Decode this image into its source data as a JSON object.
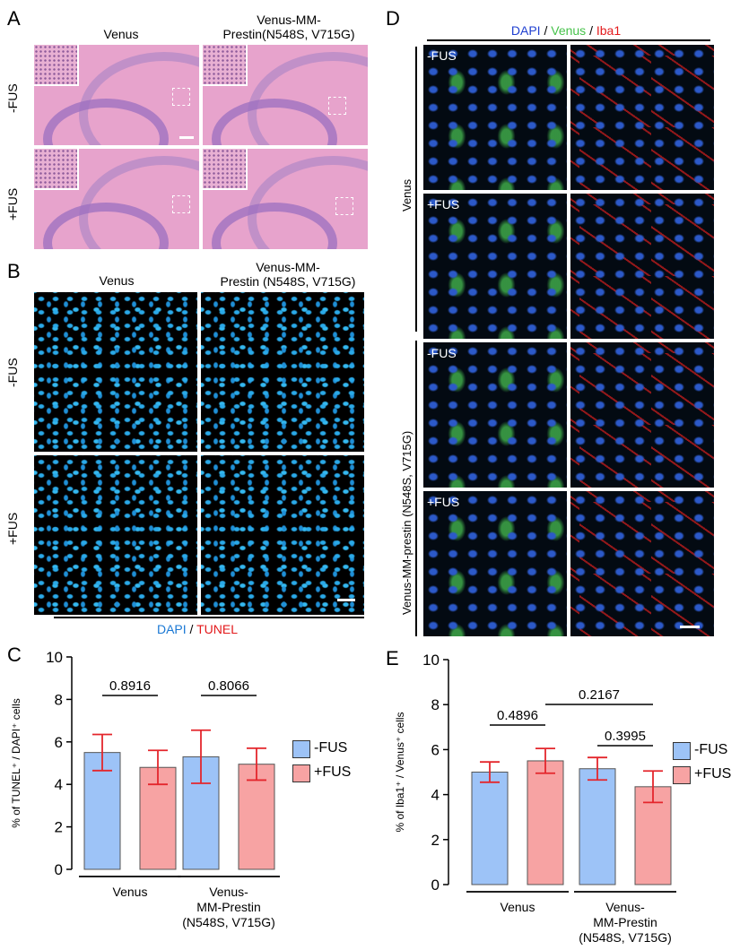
{
  "panels": {
    "A": {
      "label": "A",
      "col_titles": [
        "Venus",
        "Venus-MM-\nPrestin(N548S, V715G)"
      ],
      "row_labels": [
        "-FUS",
        "+FUS"
      ]
    },
    "B": {
      "label": "B",
      "col_titles": [
        "Venus",
        "Venus-MM-\nPrestin (N548S, V715G)"
      ],
      "row_labels": [
        "-FUS",
        "+FUS"
      ],
      "stain_a": "DAPI",
      "stain_sep": " / ",
      "stain_b": "TUNEL",
      "colors": {
        "dapi": "#1a78d4",
        "tunel": "#e31a1c"
      }
    },
    "D": {
      "label": "D",
      "stain_a": "DAPI",
      "sep1": " / ",
      "stain_b": "Venus",
      "sep2": " / ",
      "stain_c": "Iba1",
      "colors": {
        "dapi": "#1f3fd0",
        "venus": "#46c24a",
        "iba1": "#e31a1c"
      },
      "group_labels": [
        "Venus",
        "Venus-MM-prestin (N548S, V715G)"
      ],
      "row_labels": [
        "-FUS",
        "+FUS",
        "-FUS",
        "+FUS"
      ]
    },
    "C": {
      "label": "C",
      "legend": [
        "-FUS",
        "+FUS"
      ]
    },
    "E": {
      "label": "E",
      "legend": [
        "-FUS",
        "+FUS"
      ]
    }
  },
  "colors": {
    "minus_fus": "#9dc3f7",
    "plus_fus": "#f7a3a3",
    "error_bar": "#e4262c"
  },
  "chart_data": [
    {
      "panel": "C",
      "type": "bar",
      "categories": [
        "Venus",
        "Venus-MM-Prestin (N548S, V715G)"
      ],
      "category_lines": [
        [
          "Venus"
        ],
        [
          "Venus-",
          "MM-Prestin",
          "(N548S, V715G)"
        ]
      ],
      "series": [
        {
          "name": "-FUS",
          "values": [
            5.5,
            5.3
          ],
          "errors": [
            0.85,
            1.25
          ]
        },
        {
          "name": "+FUS",
          "values": [
            4.8,
            4.95
          ],
          "errors": [
            0.8,
            0.75
          ]
        }
      ],
      "ylabel": "% of TUNEL⁺ / DAPI⁺ cells",
      "ylim": [
        0,
        10
      ],
      "yticks": [
        0,
        2,
        4,
        6,
        8,
        10
      ],
      "annotations": [
        {
          "text": "0.8916",
          "between": [
            [
              0,
              0
            ],
            [
              0,
              1
            ]
          ]
        },
        {
          "text": "0.8066",
          "between": [
            [
              1,
              0
            ],
            [
              1,
              1
            ]
          ]
        }
      ],
      "legend_position": "right"
    },
    {
      "panel": "E",
      "type": "bar",
      "categories": [
        "Venus",
        "Venus-MM-Prestin (N548S, V715G)"
      ],
      "category_lines": [
        [
          "Venus"
        ],
        [
          "Venus-",
          "MM-Prestin",
          "(N548S, V715G)"
        ]
      ],
      "series": [
        {
          "name": "-FUS",
          "values": [
            5.0,
            5.15
          ],
          "errors": [
            0.45,
            0.5
          ]
        },
        {
          "name": "+FUS",
          "values": [
            5.5,
            4.35
          ],
          "errors": [
            0.55,
            0.7
          ]
        }
      ],
      "ylabel": "% of Iba1⁺ / Venus⁺ cells",
      "ylim": [
        0,
        10
      ],
      "yticks": [
        0,
        2,
        4,
        6,
        8,
        10
      ],
      "annotations": [
        {
          "text": "0.4896",
          "between": [
            [
              0,
              0
            ],
            [
              0,
              1
            ]
          ],
          "level": 0
        },
        {
          "text": "0.2167",
          "between": [
            [
              0,
              1
            ],
            [
              1,
              1
            ]
          ],
          "level": 1
        },
        {
          "text": "0.3995",
          "between": [
            [
              1,
              0
            ],
            [
              1,
              1
            ]
          ],
          "level": 0
        }
      ],
      "legend_position": "right"
    }
  ]
}
